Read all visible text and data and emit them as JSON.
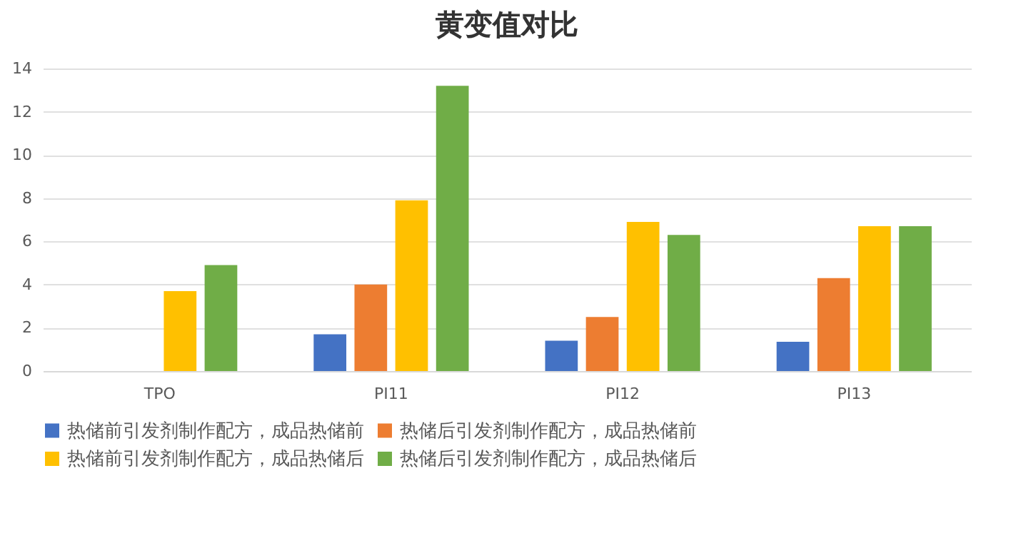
{
  "chart_data": {
    "type": "bar",
    "title": "黄变值对比",
    "categories": [
      "TPO",
      "PI11",
      "PI12",
      "PI13"
    ],
    "series": [
      {
        "name": "热储前引发剂制作配方，成品热储前",
        "color": "#4472c4",
        "values": [
          null,
          1.7,
          1.4,
          1.35
        ]
      },
      {
        "name": "热储后引发剂制作配方，成品热储前",
        "color": "#ed7d31",
        "values": [
          null,
          4.0,
          2.5,
          4.3
        ]
      },
      {
        "name": "热储前引发剂制作配方，成品热储后",
        "color": "#ffc000",
        "values": [
          3.7,
          7.9,
          6.9,
          6.7
        ]
      },
      {
        "name": "热储后引发剂制作配方，成品热储后",
        "color": "#70ad47",
        "values": [
          4.9,
          13.2,
          6.3,
          6.7
        ]
      }
    ],
    "ylim": [
      0,
      14
    ],
    "yticks": [
      0,
      2,
      4,
      6,
      8,
      10,
      12,
      14
    ],
    "grid": "y",
    "legend": "bottom"
  }
}
